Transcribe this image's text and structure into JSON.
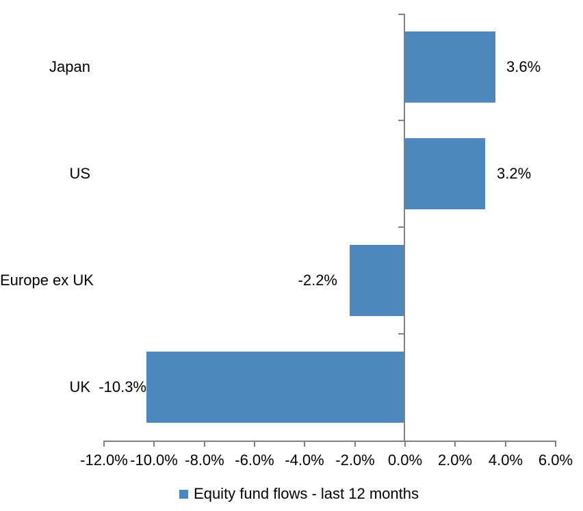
{
  "chart_data": {
    "type": "bar",
    "orientation": "horizontal",
    "title": "",
    "categories": [
      "Japan",
      "US",
      "Europe ex UK",
      "UK"
    ],
    "values": [
      3.6,
      3.2,
      -2.2,
      -10.3
    ],
    "data_labels": [
      "3.6%",
      "3.2%",
      "-2.2%",
      "-10.3%"
    ],
    "xlim": [
      -12,
      6
    ],
    "x_tick_values": [
      -12,
      -10,
      -8,
      -6,
      -4,
      -2,
      0,
      2,
      4,
      6
    ],
    "x_tick_labels": [
      "-12.0%",
      "-10.0%",
      "-8.0%",
      "-6.0%",
      "-4.0%",
      "-2.0%",
      "0.0%",
      "2.0%",
      "4.0%",
      "6.0%"
    ],
    "grid": false,
    "legend": {
      "position": "bottom",
      "items": [
        {
          "label": "Equity fund flows - last 12 months",
          "color": "#4E87BE"
        }
      ]
    },
    "colors": {
      "bar": "#4E87BE",
      "axis": "#808080",
      "text": "#000000",
      "background": "#FFFFFF"
    }
  }
}
